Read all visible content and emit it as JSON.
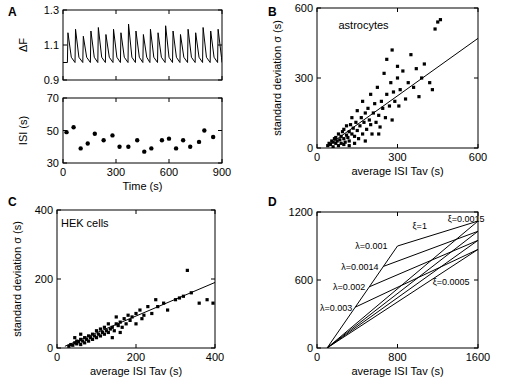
{
  "chart_data": [
    {
      "type": "line",
      "title": "A",
      "ylabel": "ΔF",
      "xlim": [
        0,
        900
      ],
      "xticks": [
        0,
        300,
        600,
        900
      ],
      "ylim": [
        0.9,
        1.3
      ],
      "yticks": [
        0.9,
        1.1,
        1.3
      ],
      "tick_labels": "y",
      "series": [
        {
          "color": "#000000",
          "x": [
            0,
            25,
            28,
            47,
            68,
            71,
            90,
            112,
            115,
            134,
            155,
            158,
            177,
            197,
            200,
            219,
            240,
            243,
            262,
            283,
            286,
            305,
            325,
            328,
            347,
            368,
            371,
            390,
            410,
            413,
            432,
            452,
            455,
            474,
            492,
            495,
            514,
            535,
            538,
            557,
            578,
            581,
            600,
            620,
            623,
            642,
            662,
            665,
            684,
            705,
            708,
            727,
            748,
            751,
            770,
            790,
            793,
            812,
            833,
            836,
            855,
            875,
            878,
            897,
            900
          ],
          "values": [
            1.0,
            1.0,
            1.17,
            1.03,
            1.0,
            1.19,
            1.03,
            1.0,
            1.15,
            1.03,
            1.0,
            1.18,
            1.03,
            1.0,
            1.2,
            1.03,
            1.0,
            1.16,
            1.03,
            1.0,
            1.19,
            1.03,
            1.0,
            1.17,
            1.03,
            1.0,
            1.22,
            1.03,
            1.0,
            1.18,
            1.03,
            1.0,
            1.16,
            1.03,
            1.0,
            1.19,
            1.03,
            1.0,
            1.17,
            1.03,
            1.0,
            1.21,
            1.03,
            1.0,
            1.18,
            1.03,
            1.0,
            1.16,
            1.03,
            1.0,
            1.19,
            1.03,
            1.0,
            1.17,
            1.03,
            1.0,
            1.2,
            1.03,
            1.0,
            1.18,
            1.03,
            1.0,
            1.19,
            1.03,
            1.0
          ]
        }
      ]
    },
    {
      "type": "scatter",
      "xlabel": "Time (s)",
      "ylabel": "ISI (s)",
      "xlim": [
        0,
        900
      ],
      "xticks": [
        0,
        300,
        600,
        900
      ],
      "ylim": [
        30,
        70
      ],
      "yticks": [
        30,
        50,
        70
      ],
      "series": [
        {
          "color": "#000000",
          "marker": "circle",
          "x": [
            20,
            60,
            100,
            140,
            180,
            230,
            280,
            320,
            370,
            420,
            460,
            500,
            560,
            600,
            640,
            680,
            720,
            770,
            800,
            850
          ],
          "values": [
            49,
            52,
            39,
            42,
            48,
            44,
            47,
            40,
            40,
            44,
            37,
            39,
            44,
            45,
            39,
            44,
            40,
            43,
            50,
            46
          ]
        }
      ]
    },
    {
      "type": "scatter",
      "title": "B",
      "xlabel": "average ISI Tav (s)",
      "ylabel": "standard deviation σ (s)",
      "xlim": [
        0,
        600
      ],
      "xticks": [
        0,
        300,
        600
      ],
      "ylim": [
        0,
        600
      ],
      "yticks": [
        0,
        300,
        600
      ],
      "annotations": [
        {
          "text": "astrocytes",
          "x": 80,
          "y": 510
        }
      ],
      "series": [
        {
          "color": "#000000",
          "marker": "square",
          "x": [
            40,
            45,
            50,
            55,
            60,
            60,
            65,
            70,
            70,
            75,
            80,
            80,
            85,
            90,
            90,
            95,
            100,
            100,
            105,
            110,
            110,
            115,
            120,
            120,
            125,
            130,
            130,
            135,
            140,
            145,
            150,
            150,
            155,
            160,
            165,
            170,
            170,
            175,
            180,
            185,
            190,
            195,
            200,
            200,
            205,
            210,
            215,
            220,
            225,
            230,
            235,
            240,
            245,
            250,
            255,
            260,
            270,
            275,
            280,
            285,
            290,
            300,
            305,
            310,
            320,
            330,
            340,
            350,
            360,
            370,
            380,
            390,
            400,
            420,
            440,
            450,
            460,
            430,
            300,
            230,
            180,
            140,
            120,
            100,
            280,
            260
          ],
          "values": [
            10,
            20,
            15,
            30,
            25,
            5,
            40,
            20,
            45,
            30,
            10,
            60,
            35,
            50,
            20,
            70,
            40,
            80,
            25,
            55,
            95,
            45,
            70,
            30,
            100,
            60,
            130,
            85,
            50,
            110,
            75,
            160,
            40,
            95,
            130,
            60,
            200,
            110,
            150,
            80,
            170,
            120,
            100,
            230,
            60,
            150,
            190,
            110,
            260,
            140,
            90,
            200,
            170,
            320,
            130,
            230,
            180,
            280,
            120,
            240,
            200,
            300,
            180,
            250,
            330,
            210,
            280,
            400,
            260,
            340,
            220,
            300,
            360,
            280,
            510,
            540,
            550,
            250,
            350,
            60,
            30,
            20,
            10,
            15,
            420,
            380
          ]
        },
        {
          "type": "line",
          "color": "#000000",
          "x": [
            40,
            600
          ],
          "values": [
            10,
            470
          ]
        }
      ]
    },
    {
      "type": "scatter",
      "title": "C",
      "xlabel": "average ISI Tav (s)",
      "ylabel": "standard deviation σ (s)",
      "xlim": [
        0,
        400
      ],
      "xticks": [
        0,
        200,
        400
      ],
      "ylim": [
        0,
        400
      ],
      "yticks": [
        0,
        200,
        400
      ],
      "annotations": [
        {
          "text": "HEK cells",
          "x": 10,
          "y": 350
        }
      ],
      "series": [
        {
          "color": "#000000",
          "marker": "square",
          "x": [
            30,
            35,
            40,
            45,
            50,
            50,
            55,
            60,
            60,
            65,
            70,
            70,
            75,
            80,
            80,
            85,
            90,
            90,
            95,
            100,
            100,
            105,
            110,
            110,
            115,
            120,
            120,
            125,
            130,
            130,
            135,
            140,
            145,
            150,
            150,
            155,
            160,
            165,
            170,
            175,
            180,
            185,
            190,
            200,
            200,
            210,
            215,
            220,
            230,
            240,
            250,
            255,
            270,
            280,
            300,
            310,
            320,
            330,
            340,
            360,
            380,
            395,
            140,
            160,
            60,
            45
          ],
          "values": [
            5,
            10,
            8,
            15,
            12,
            20,
            18,
            10,
            25,
            20,
            15,
            30,
            25,
            20,
            35,
            30,
            25,
            40,
            35,
            30,
            50,
            40,
            35,
            55,
            45,
            40,
            60,
            50,
            45,
            70,
            55,
            60,
            50,
            70,
            90,
            65,
            75,
            60,
            85,
            70,
            95,
            80,
            90,
            70,
            100,
            110,
            85,
            95,
            120,
            100,
            140,
            120,
            130,
            110,
            140,
            145,
            150,
            225,
            160,
            130,
            140,
            130,
            30,
            45,
            40,
            30
          ]
        },
        {
          "type": "line",
          "color": "#000000",
          "x": [
            20,
            400
          ],
          "values": [
            5,
            190
          ]
        }
      ]
    },
    {
      "type": "line",
      "title": "D",
      "xlabel": "average ISI Tav (s)",
      "xlim": [
        0,
        1600
      ],
      "xticks": [
        0,
        800,
        1600
      ],
      "ylim": [
        0,
        1200
      ],
      "yticks": [
        0,
        600,
        1200
      ],
      "annotations": [
        {
          "text": "λ=0.001",
          "x": 380,
          "y": 870
        },
        {
          "text": "λ=0.0014",
          "x": 240,
          "y": 690
        },
        {
          "text": "λ=0.002",
          "x": 160,
          "y": 510
        },
        {
          "text": "λ=0.003",
          "x": 30,
          "y": 330
        },
        {
          "text": "ξ=1",
          "x": 950,
          "y": 1050
        },
        {
          "text": "ξ=0.0015",
          "x": 1300,
          "y": 1110
        },
        {
          "text": "ξ=0.0005",
          "x": 1150,
          "y": 560
        }
      ],
      "series": [
        {
          "color": "#000000",
          "x": [
            100,
            800
          ],
          "values": [
            0,
            900
          ]
        },
        {
          "color": "#000000",
          "x": [
            100,
            1600
          ],
          "values": [
            0,
            1120
          ]
        },
        {
          "color": "#000000",
          "x": [
            100,
            1600
          ],
          "values": [
            0,
            1030
          ]
        },
        {
          "color": "#000000",
          "x": [
            100,
            1600
          ],
          "values": [
            0,
            950
          ]
        },
        {
          "color": "#000000",
          "x": [
            100,
            1600
          ],
          "values": [
            0,
            870
          ]
        },
        {
          "color": "#000000",
          "x": [
            800,
            1600
          ],
          "values": [
            900,
            1120
          ]
        },
        {
          "color": "#000000",
          "x": [
            660,
            1600
          ],
          "values": [
            720,
            1030
          ]
        },
        {
          "color": "#000000",
          "x": [
            520,
            1600
          ],
          "values": [
            540,
            950
          ]
        },
        {
          "color": "#000000",
          "x": [
            380,
            1600
          ],
          "values": [
            360,
            870
          ]
        }
      ]
    }
  ]
}
